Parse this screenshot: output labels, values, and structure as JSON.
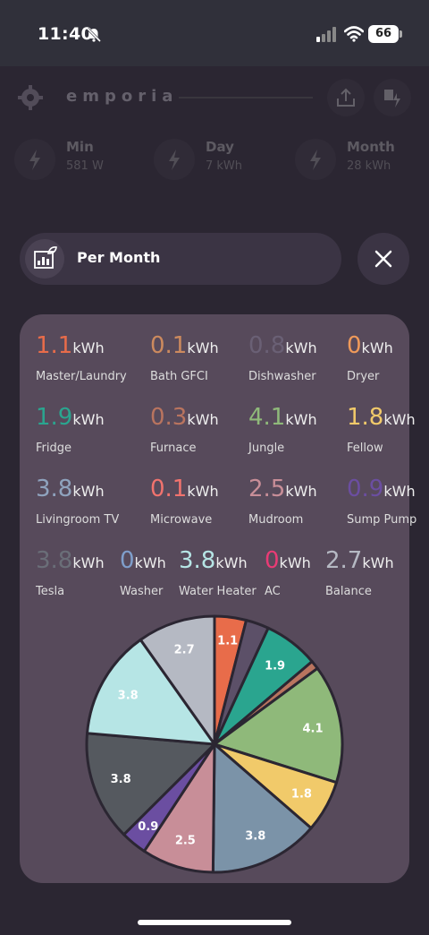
{
  "status_bar": {
    "time": "11:40",
    "battery": "66"
  },
  "header": {
    "brand": "emporia"
  },
  "summary": {
    "min_label": "Min",
    "min_value": "581 W",
    "day_label": "Day",
    "day_value": "7 kWh",
    "month_label": "Month",
    "month_value": "28 kWh"
  },
  "period": {
    "label": "Per Month"
  },
  "unit": "kWh",
  "colors": {
    "background": "#2b2632",
    "card": "#574a5b",
    "pill": "#3b3444"
  },
  "circuits": [
    {
      "name": "Master/Laundry",
      "value": "1.1",
      "color": "#e86c4a"
    },
    {
      "name": "Bath GFCI",
      "value": "0.1",
      "color": "#cc8a5e"
    },
    {
      "name": "Dishwasher",
      "value": "0.8",
      "color": "#6a6075"
    },
    {
      "name": "Dryer",
      "value": "0",
      "color": "#ef9a5a"
    },
    {
      "name": "Fridge",
      "value": "1.9",
      "color": "#2aa58f"
    },
    {
      "name": "Furnace",
      "value": "0.3",
      "color": "#b9745f"
    },
    {
      "name": "Jungle",
      "value": "4.1",
      "color": "#8fb97a"
    },
    {
      "name": "Fellow",
      "value": "1.8",
      "color": "#f1ca6a"
    },
    {
      "name": "Livingroom TV",
      "value": "3.8",
      "color": "#8fa3be"
    },
    {
      "name": "Microwave",
      "value": "0.1",
      "color": "#f1736e"
    },
    {
      "name": "Mudroom",
      "value": "2.5",
      "color": "#c88e98"
    },
    {
      "name": "Sump Pump",
      "value": "0.9",
      "color": "#6b4ea1"
    },
    {
      "name": "Tesla",
      "value": "3.8",
      "color": "#6a6e78"
    },
    {
      "name": "Washer",
      "value": "0",
      "color": "#7f9ecb"
    },
    {
      "name": "Water Heater",
      "value": "3.8",
      "color": "#b6e5e5"
    },
    {
      "name": "AC",
      "value": "0",
      "color": "#e93b75"
    },
    {
      "name": "Balance",
      "value": "2.7",
      "color": "#b5b9c3"
    }
  ],
  "chart_data": {
    "type": "pie",
    "slices": [
      {
        "label": "1.1",
        "value": 1.1,
        "color": "#e86c4a"
      },
      {
        "label": "",
        "value": 0.8,
        "color": "#5c5068"
      },
      {
        "label": "1.9",
        "value": 1.9,
        "color": "#2aa58f"
      },
      {
        "label": "",
        "value": 0.3,
        "color": "#b9745f"
      },
      {
        "label": "4.1",
        "value": 4.1,
        "color": "#8fb97a"
      },
      {
        "label": "1.8",
        "value": 1.8,
        "color": "#f1ca6a"
      },
      {
        "label": "3.8",
        "value": 3.8,
        "color": "#7b93a8"
      },
      {
        "label": "2.5",
        "value": 2.5,
        "color": "#c88e98"
      },
      {
        "label": "0.9",
        "value": 0.9,
        "color": "#6b4ea1"
      },
      {
        "label": "3.8",
        "value": 3.8,
        "color": "#55595f"
      },
      {
        "label": "3.8",
        "value": 3.8,
        "color": "#b6e5e5"
      },
      {
        "label": "2.7",
        "value": 2.7,
        "color": "#b5b9c3"
      }
    ]
  }
}
